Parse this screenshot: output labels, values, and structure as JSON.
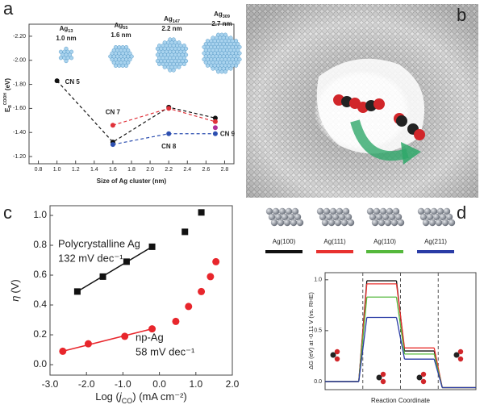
{
  "panel_labels": [
    "a",
    "b",
    "c",
    "d"
  ],
  "chart_data": [
    {
      "type": "line",
      "clusters": [
        {
          "name": "Ag",
          "sub": "13",
          "size": "1.0 nm"
        },
        {
          "name": "Ag",
          "sub": "55",
          "size": "1.6 nm"
        },
        {
          "name": "Ag",
          "sub": "147",
          "size": "2.2 nm"
        },
        {
          "name": "Ag",
          "sub": "309",
          "size": "2.7 nm"
        }
      ],
      "ylabel": {
        "main": "E",
        "sub": "B",
        "sup": "COOH",
        "unit": "(eV)"
      },
      "xlabel": "Size of Ag cluster (nm)",
      "xlim": [
        0.7,
        2.9
      ],
      "xticks": [
        0.8,
        {
          "value": 1,
          "label": "1.0"
        },
        1.2,
        1.4,
        1.6,
        1.8,
        {
          "value": 2,
          "label": "2.0"
        },
        2.2,
        2.4,
        2.6,
        2.8
      ],
      "ylim": [
        -1.14,
        -2.3
      ],
      "yticks": [
        {
          "value": -2.2,
          "label": "-2.20"
        },
        {
          "value": -2,
          "label": "-2.00"
        },
        {
          "value": -1.8,
          "label": "-1.80"
        },
        {
          "value": -1.6,
          "label": "-1.60"
        },
        {
          "value": -1.4,
          "label": "-1.40"
        },
        {
          "value": -1.2,
          "label": "-1.20"
        }
      ],
      "line_style": "dashed",
      "series": [
        {
          "name": "CN 5",
          "color": "#111111",
          "x": [
            1.0,
            1.6,
            2.2,
            2.7
          ],
          "values": [
            -1.83,
            -1.32,
            -1.61,
            -1.52
          ]
        },
        {
          "name": "CN 7",
          "color": "#e0323a",
          "x": [
            1.6,
            2.2,
            2.7
          ],
          "values": [
            -1.46,
            -1.6,
            -1.49
          ]
        },
        {
          "name": "CN 8",
          "color": "#2d4fb0",
          "x": [
            1.6,
            2.2,
            2.7
          ],
          "values": [
            -1.3,
            -1.39,
            -1.39
          ]
        },
        {
          "name": "CN 9",
          "color": "#b0309a",
          "x": [
            2.7
          ],
          "values": [
            -1.44
          ]
        }
      ]
    },
    {
      "type": "scatter",
      "ylabel": {
        "main": "η",
        "unit": "(V)"
      },
      "xlabel": {
        "pre": "Log (",
        "main": "j",
        "sub": "CO",
        "post": ") (mA cm⁻²)"
      },
      "xlim": [
        -3,
        2
      ],
      "xticks": [
        {
          "value": -3,
          "label": "-3.0"
        },
        {
          "value": -2,
          "label": "-2.0"
        },
        {
          "value": -1,
          "label": "-1.0"
        },
        {
          "value": 0,
          "label": "0.0"
        },
        {
          "value": 1,
          "label": "1.0"
        },
        {
          "value": 2,
          "label": "2.0"
        }
      ],
      "ylim": [
        -0.07,
        1.065
      ],
      "yticks": [
        {
          "value": 0,
          "label": "0.0"
        },
        0.2,
        0.4,
        0.6,
        0.8,
        {
          "value": 1,
          "label": "1.0"
        }
      ],
      "series": [
        {
          "name": "Polycrystalline Ag",
          "label": "132 mV dec⁻¹",
          "color": "#111111",
          "marker": "square",
          "x": [
            -2.25,
            -1.55,
            -0.9,
            -0.2,
            0.7,
            1.15
          ],
          "values": [
            0.49,
            0.59,
            0.69,
            0.79,
            0.89,
            1.02
          ],
          "fit": {
            "x": [
              -2.25,
              -0.2
            ],
            "values": [
              0.49,
              0.79
            ]
          }
        },
        {
          "name": "np-Ag",
          "label": "58 mV dec⁻¹",
          "color": "#e8262c",
          "marker": "circle",
          "x": [
            -2.65,
            -1.95,
            -0.95,
            -0.2,
            0.45,
            0.8,
            1.15,
            1.4,
            1.55
          ],
          "values": [
            0.09,
            0.14,
            0.19,
            0.24,
            0.29,
            0.39,
            0.49,
            0.59,
            0.69
          ],
          "fit": {
            "x": [
              -2.65,
              -0.2
            ],
            "values": [
              0.09,
              0.24
            ]
          }
        }
      ]
    },
    {
      "type": "step",
      "categories": [
        null,
        null,
        null,
        null
      ],
      "ylabel": "ΔG (eV) at -0.11 V (vs. RHE)",
      "xlabel": "Reaction Coordinate",
      "ylim": [
        -0.08,
        1.07
      ],
      "yticks": [
        {
          "value": 0,
          "label": "0.0"
        },
        0.5,
        {
          "value": 1,
          "label": "1.0"
        }
      ],
      "series": [
        {
          "name": "Ag(100)",
          "color": "#111111",
          "values": [
            0,
            0.99,
            0.3,
            -0.06
          ]
        },
        {
          "name": "Ag(111)",
          "color": "#e8312f",
          "values": [
            0,
            0.96,
            0.33,
            -0.06
          ]
        },
        {
          "name": "Ag(110)",
          "color": "#55b83c",
          "values": [
            0,
            0.83,
            0.27,
            -0.06
          ]
        },
        {
          "name": "Ag(211)",
          "color": "#2a3ca6",
          "values": [
            0,
            0.63,
            0.22,
            -0.06
          ]
        }
      ]
    }
  ]
}
